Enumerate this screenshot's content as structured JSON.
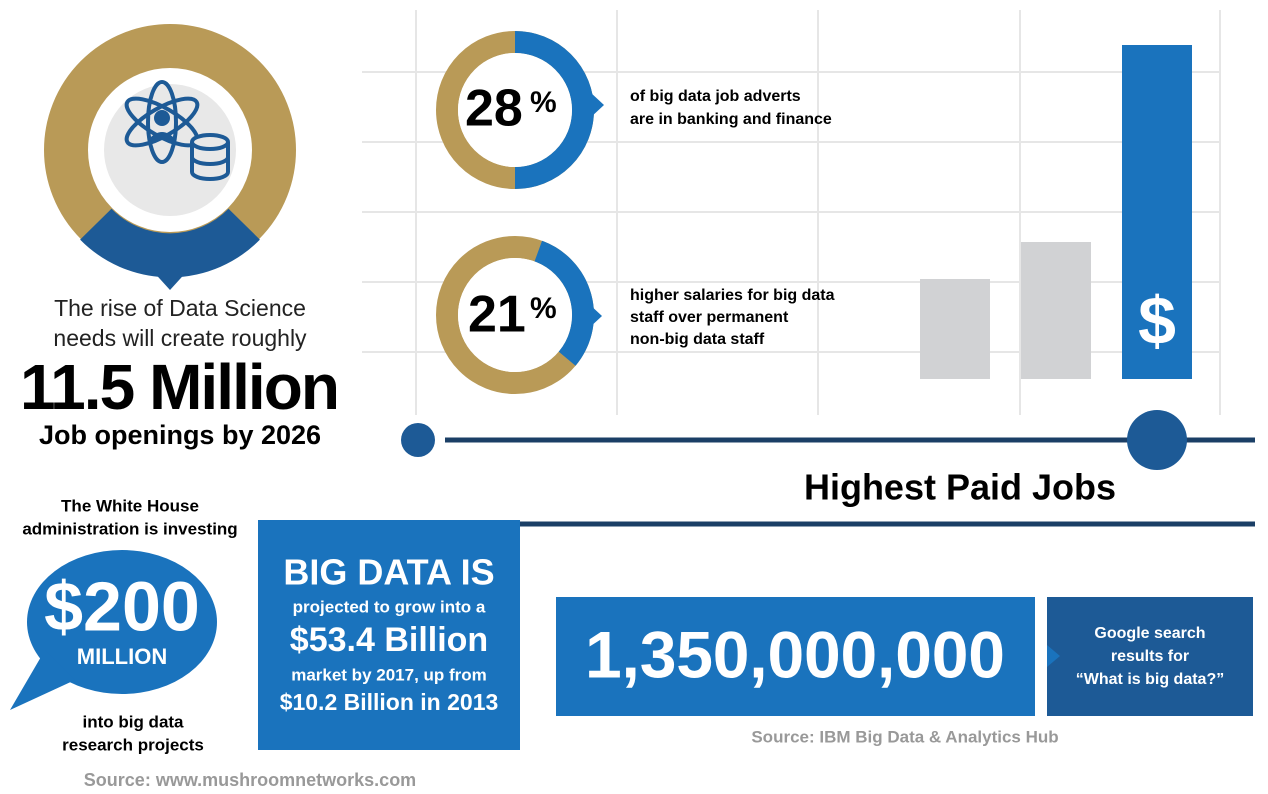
{
  "left": {
    "lines": [
      "The rise of Data Science",
      "needs will create roughly"
    ],
    "headline": "11.5 Million",
    "subline": "Job openings by 2026"
  },
  "stats": [
    {
      "value": "28",
      "unit": "%",
      "lines": [
        "of big data job adverts",
        "are in banking and finance"
      ]
    },
    {
      "value": "21",
      "unit": "%",
      "lines": [
        "higher salaries for big data",
        "staff over permanent",
        "non-big data staff"
      ]
    }
  ],
  "bar_icon": "$",
  "jobs_title": "Highest Paid Jobs",
  "whitehouse": {
    "top": [
      "The White House",
      "administration is investing"
    ],
    "amount": "$200",
    "unit": "MILLION",
    "bottom": [
      "into big data",
      "research projects"
    ],
    "source": "Source: www.mushroomnetworks.com"
  },
  "bigdata": {
    "title": "BIG DATA IS",
    "line1": "projected to grow into a",
    "amount": "$53.4 Billion",
    "line2": "market by 2017, up from",
    "line3": "$10.2 Billion in 2013"
  },
  "google": {
    "number": "1,350,000,000",
    "lines": [
      "Google search",
      "results for",
      "“What is big data?”"
    ],
    "source": "Source: IBM Big Data & Analytics Hub"
  }
}
